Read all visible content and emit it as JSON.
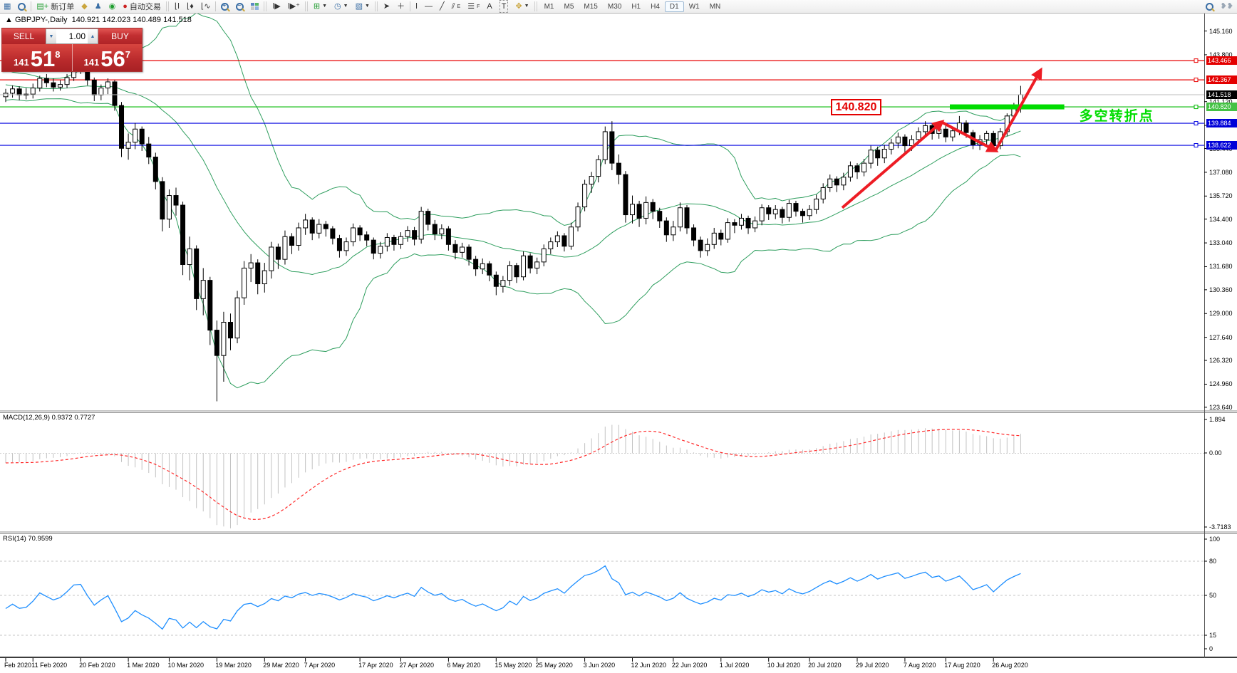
{
  "toolbar": {
    "new_order_label": "新订单",
    "autotrading_label": "自动交易",
    "timeframes": [
      "M1",
      "M5",
      "M15",
      "M30",
      "H1",
      "H4",
      "D1",
      "W1",
      "MN"
    ],
    "active_timeframe": "D1",
    "fibo_letter": "F",
    "channel_letter": "E",
    "text_letter": "A",
    "label_letter": "T"
  },
  "chart": {
    "collapse_arrow": "▲",
    "symbol_header": "GBPJPY-,Daily",
    "ohlc_text": "140.921 142.023 140.489 141.518",
    "trade_panel": {
      "sell_label": "SELL",
      "buy_label": "BUY",
      "volume": "1.00",
      "sell_price_prefix": "141",
      "sell_price_big": "51",
      "sell_price_sup": "8",
      "buy_price_prefix": "141",
      "buy_price_big": "56",
      "buy_price_sup": "7"
    },
    "price_axis_ticks": [
      145.16,
      143.8,
      141.12,
      139.76,
      138.44,
      137.08,
      135.72,
      134.4,
      133.04,
      131.68,
      130.36,
      129.0,
      127.64,
      126.32,
      124.96,
      123.64
    ],
    "hlines": [
      {
        "price": 143.466,
        "label": "143.466",
        "color": "#e80000",
        "badge": "#e40000"
      },
      {
        "price": 142.367,
        "label": "142.367",
        "color": "#e80000",
        "badge": "#e40000"
      },
      {
        "price": 141.518,
        "label": "141.518",
        "color": "#bcbcbc",
        "badge": "#000000",
        "current": true
      },
      {
        "price": 140.82,
        "label": "140.820",
        "color": "#00b800",
        "badge": "#44c244"
      },
      {
        "price": 139.884,
        "label": "139.884",
        "color": "#0000e0",
        "badge": "#0000d8"
      },
      {
        "price": 138.622,
        "label": "138.622",
        "color": "#0000e0",
        "badge": "#0000d8"
      }
    ],
    "annotations": {
      "price_label": {
        "text": "140.820",
        "bar": 121.5,
        "price": 140.82
      },
      "zone": {
        "bar_start": 138.6,
        "bar_end": 155.4,
        "price": 140.82,
        "color": "#00dc00"
      },
      "zone_text": {
        "text": "多空转折点",
        "color": "#00dd00",
        "bar": 157.6,
        "price": 140.45
      },
      "trend_arrow": {
        "color": "#ed1c24",
        "points": [
          [
            122.8,
            135.05
          ],
          [
            137.4,
            139.95
          ],
          [
            145.3,
            138.32
          ],
          [
            151.9,
            142.9
          ]
        ]
      }
    }
  },
  "indicators": {
    "macd": {
      "label": "MACD(12,26,9) 0.9372 0.7727",
      "axis": [
        "1.894",
        "0.00",
        "-3.7183"
      ],
      "fast": 12,
      "slow": 26,
      "signal_period": 9
    },
    "rsi": {
      "label": "RSI(14) 70.9599",
      "axis": [
        "100",
        "80",
        "50",
        "15",
        "0"
      ],
      "period": 14,
      "levels": [
        80,
        50,
        15
      ]
    }
  },
  "x_axis": {
    "labels": [
      {
        "text": "Feb 2020",
        "bar": 0
      },
      {
        "text": "11 Feb 2020",
        "bar": 4
      },
      {
        "text": "20 Feb 2020",
        "bar": 11
      },
      {
        "text": "1 Mar 2020",
        "bar": 18
      },
      {
        "text": "10 Mar 2020",
        "bar": 24
      },
      {
        "text": "19 Mar 2020",
        "bar": 31
      },
      {
        "text": "29 Mar 2020",
        "bar": 38
      },
      {
        "text": "7 Apr 2020",
        "bar": 44
      },
      {
        "text": "17 Apr 2020",
        "bar": 52
      },
      {
        "text": "27 Apr 2020",
        "bar": 58
      },
      {
        "text": "6 May 2020",
        "bar": 65
      },
      {
        "text": "15 May 2020",
        "bar": 72
      },
      {
        "text": "25 May 2020",
        "bar": 78
      },
      {
        "text": "3 Jun 2020",
        "bar": 85
      },
      {
        "text": "12 Jun 2020",
        "bar": 92
      },
      {
        "text": "22 Jun 2020",
        "bar": 98
      },
      {
        "text": "1 Jul 2020",
        "bar": 105
      },
      {
        "text": "10 Jul 2020",
        "bar": 112
      },
      {
        "text": "20 Jul 2020",
        "bar": 118
      },
      {
        "text": "29 Jul 2020",
        "bar": 125
      },
      {
        "text": "7 Aug 2020",
        "bar": 132
      },
      {
        "text": "17 Aug 2020",
        "bar": 138
      },
      {
        "text": "26 Aug 2020",
        "bar": 145
      }
    ]
  },
  "chart_data": {
    "type": "candlestick",
    "symbol": "GBPJPY",
    "timeframe": "Daily",
    "ylim": [
      123.64,
      146.2
    ],
    "bollinger": {
      "period": 20,
      "deviation": 2
    },
    "warmup_closes": [
      143.95,
      143.6,
      143.9,
      144.2,
      143.75,
      143.4,
      143.6,
      143.1,
      142.75,
      142.95,
      143.3,
      143.0,
      142.6,
      142.3,
      142.55,
      142.85,
      142.5,
      142.1,
      141.85,
      142.05,
      142.35,
      142.0,
      141.7,
      141.9,
      142.2,
      141.95,
      141.65,
      141.45,
      141.7,
      141.4
    ],
    "bars": [
      [
        141.4,
        141.85,
        141.1,
        141.6
      ],
      [
        141.6,
        142.05,
        141.35,
        141.85
      ],
      [
        141.85,
        142.0,
        141.2,
        141.5
      ],
      [
        141.5,
        141.9,
        141.25,
        141.55
      ],
      [
        141.55,
        142.15,
        141.3,
        141.9
      ],
      [
        141.9,
        142.6,
        141.7,
        142.45
      ],
      [
        142.45,
        142.7,
        141.95,
        142.2
      ],
      [
        142.2,
        142.45,
        141.7,
        141.95
      ],
      [
        141.95,
        142.35,
        141.75,
        142.1
      ],
      [
        142.1,
        142.7,
        141.9,
        142.5
      ],
      [
        142.5,
        143.25,
        142.3,
        143.05
      ],
      [
        143.05,
        143.45,
        142.7,
        143.1
      ],
      [
        143.1,
        143.2,
        142.05,
        142.35
      ],
      [
        142.35,
        142.5,
        141.15,
        141.5
      ],
      [
        141.5,
        142.1,
        141.2,
        141.9
      ],
      [
        141.9,
        142.45,
        141.55,
        142.25
      ],
      [
        142.25,
        142.35,
        140.6,
        140.9
      ],
      [
        140.9,
        141.1,
        137.95,
        138.45
      ],
      [
        138.45,
        139.3,
        137.8,
        138.8
      ],
      [
        138.8,
        139.9,
        138.4,
        139.55
      ],
      [
        139.55,
        139.7,
        138.3,
        138.7
      ],
      [
        138.7,
        139.1,
        137.55,
        137.95
      ],
      [
        137.95,
        138.2,
        136.1,
        136.55
      ],
      [
        136.55,
        136.8,
        133.7,
        134.4
      ],
      [
        134.4,
        136.1,
        133.9,
        135.75
      ],
      [
        135.75,
        136.2,
        134.6,
        135.2
      ],
      [
        135.2,
        135.4,
        131.2,
        131.8
      ],
      [
        131.8,
        133.4,
        130.9,
        132.7
      ],
      [
        132.7,
        132.9,
        129.2,
        129.85
      ],
      [
        129.85,
        131.6,
        128.9,
        130.9
      ],
      [
        130.9,
        131.1,
        127.2,
        128.05
      ],
      [
        128.05,
        128.6,
        123.98,
        126.6
      ],
      [
        126.6,
        129.1,
        125.1,
        128.5
      ],
      [
        128.5,
        129.0,
        126.9,
        127.6
      ],
      [
        127.6,
        130.3,
        127.3,
        129.9
      ],
      [
        129.9,
        132.0,
        129.5,
        131.6
      ],
      [
        131.6,
        132.4,
        130.8,
        131.9
      ],
      [
        131.9,
        132.1,
        130.1,
        130.7
      ],
      [
        130.7,
        131.9,
        130.2,
        131.45
      ],
      [
        131.45,
        133.1,
        131.0,
        132.8
      ],
      [
        132.8,
        133.0,
        131.55,
        132.1
      ],
      [
        132.1,
        133.75,
        131.8,
        133.4
      ],
      [
        133.4,
        133.6,
        132.4,
        132.9
      ],
      [
        132.9,
        134.2,
        132.6,
        133.9
      ],
      [
        133.9,
        134.7,
        133.5,
        134.35
      ],
      [
        134.35,
        134.5,
        133.2,
        133.6
      ],
      [
        133.6,
        134.4,
        133.3,
        134.1
      ],
      [
        134.1,
        134.3,
        133.4,
        133.85
      ],
      [
        133.85,
        134.0,
        132.95,
        133.3
      ],
      [
        133.3,
        133.5,
        132.2,
        132.6
      ],
      [
        132.6,
        133.35,
        132.3,
        133.1
      ],
      [
        133.1,
        134.15,
        132.85,
        133.9
      ],
      [
        133.9,
        134.05,
        133.15,
        133.5
      ],
      [
        133.5,
        133.7,
        132.85,
        133.2
      ],
      [
        133.2,
        133.35,
        132.1,
        132.45
      ],
      [
        132.45,
        133.1,
        132.15,
        132.85
      ],
      [
        132.85,
        133.6,
        132.55,
        133.35
      ],
      [
        133.35,
        133.5,
        132.6,
        132.95
      ],
      [
        132.95,
        133.65,
        132.7,
        133.4
      ],
      [
        133.4,
        134.0,
        133.1,
        133.75
      ],
      [
        133.75,
        133.95,
        132.9,
        133.25
      ],
      [
        133.25,
        135.1,
        133.0,
        134.85
      ],
      [
        134.85,
        135.0,
        133.75,
        134.1
      ],
      [
        134.1,
        134.35,
        133.2,
        133.55
      ],
      [
        133.55,
        134.1,
        133.25,
        133.85
      ],
      [
        133.85,
        134.0,
        132.6,
        132.95
      ],
      [
        132.95,
        133.2,
        132.1,
        132.5
      ],
      [
        132.5,
        133.05,
        132.2,
        132.8
      ],
      [
        132.8,
        132.95,
        131.75,
        132.1
      ],
      [
        132.1,
        132.3,
        131.15,
        131.55
      ],
      [
        131.55,
        132.15,
        131.25,
        131.85
      ],
      [
        131.85,
        132.0,
        130.85,
        131.2
      ],
      [
        131.2,
        131.4,
        130.05,
        130.55
      ],
      [
        130.55,
        131.15,
        130.2,
        130.9
      ],
      [
        130.9,
        132.0,
        130.6,
        131.75
      ],
      [
        131.75,
        131.9,
        130.75,
        131.1
      ],
      [
        131.1,
        132.55,
        130.9,
        132.3
      ],
      [
        132.3,
        132.45,
        131.3,
        131.6
      ],
      [
        131.6,
        132.2,
        131.25,
        131.95
      ],
      [
        131.95,
        132.95,
        131.7,
        132.7
      ],
      [
        132.7,
        133.35,
        132.4,
        133.1
      ],
      [
        133.1,
        133.7,
        132.8,
        133.45
      ],
      [
        133.45,
        133.6,
        132.55,
        132.85
      ],
      [
        132.85,
        134.2,
        132.65,
        133.95
      ],
      [
        133.95,
        135.35,
        133.7,
        135.1
      ],
      [
        135.1,
        136.65,
        134.85,
        136.4
      ],
      [
        136.4,
        137.1,
        135.9,
        136.85
      ],
      [
        136.85,
        138.05,
        136.5,
        137.8
      ],
      [
        137.8,
        139.7,
        137.55,
        139.4
      ],
      [
        139.4,
        140.0,
        137.2,
        137.6
      ],
      [
        137.6,
        138.1,
        136.4,
        136.95
      ],
      [
        136.95,
        137.15,
        134.2,
        134.65
      ],
      [
        134.65,
        135.75,
        134.15,
        135.25
      ],
      [
        135.25,
        135.45,
        133.95,
        134.45
      ],
      [
        134.45,
        135.7,
        134.1,
        135.35
      ],
      [
        135.35,
        135.55,
        134.4,
        134.85
      ],
      [
        134.85,
        135.05,
        133.9,
        134.3
      ],
      [
        134.3,
        134.5,
        133.1,
        133.5
      ],
      [
        133.5,
        134.3,
        133.15,
        133.95
      ],
      [
        133.95,
        135.35,
        133.7,
        135.05
      ],
      [
        135.05,
        135.2,
        133.55,
        133.9
      ],
      [
        133.9,
        134.1,
        132.85,
        133.2
      ],
      [
        133.2,
        133.4,
        132.2,
        132.6
      ],
      [
        132.6,
        133.3,
        132.3,
        132.95
      ],
      [
        132.95,
        133.9,
        132.7,
        133.6
      ],
      [
        133.6,
        133.8,
        132.9,
        133.25
      ],
      [
        133.25,
        134.45,
        133.05,
        134.2
      ],
      [
        134.2,
        134.4,
        133.6,
        134.05
      ],
      [
        134.05,
        134.7,
        133.8,
        134.45
      ],
      [
        134.45,
        134.6,
        133.55,
        133.9
      ],
      [
        133.9,
        134.55,
        133.65,
        134.3
      ],
      [
        134.3,
        135.25,
        134.05,
        135.05
      ],
      [
        135.05,
        135.2,
        134.35,
        134.7
      ],
      [
        134.7,
        135.2,
        134.4,
        134.95
      ],
      [
        134.95,
        135.1,
        134.15,
        134.5
      ],
      [
        134.5,
        135.5,
        134.25,
        135.3
      ],
      [
        135.3,
        135.45,
        134.55,
        134.85
      ],
      [
        134.85,
        135.0,
        134.2,
        134.6
      ],
      [
        134.6,
        135.2,
        134.35,
        134.95
      ],
      [
        134.95,
        135.8,
        134.7,
        135.55
      ],
      [
        135.55,
        136.45,
        135.3,
        136.2
      ],
      [
        136.2,
        136.95,
        135.95,
        136.7
      ],
      [
        136.7,
        136.85,
        135.95,
        136.35
      ],
      [
        136.35,
        137.05,
        136.05,
        136.8
      ],
      [
        136.8,
        137.7,
        136.55,
        137.45
      ],
      [
        137.45,
        137.6,
        136.7,
        137.1
      ],
      [
        137.1,
        137.85,
        136.85,
        137.6
      ],
      [
        137.6,
        138.6,
        137.3,
        138.35
      ],
      [
        138.35,
        138.55,
        137.45,
        137.9
      ],
      [
        137.9,
        138.65,
        137.6,
        138.4
      ],
      [
        138.4,
        139.0,
        138.1,
        138.75
      ],
      [
        138.75,
        139.35,
        138.45,
        139.1
      ],
      [
        139.1,
        139.25,
        138.2,
        138.6
      ],
      [
        138.6,
        139.2,
        138.3,
        138.95
      ],
      [
        138.95,
        139.65,
        138.7,
        139.4
      ],
      [
        139.4,
        140.0,
        139.1,
        139.75
      ],
      [
        139.75,
        139.9,
        138.95,
        139.3
      ],
      [
        139.3,
        139.8,
        139.0,
        139.55
      ],
      [
        139.55,
        139.75,
        138.8,
        139.1
      ],
      [
        139.1,
        139.7,
        138.85,
        139.45
      ],
      [
        139.45,
        140.3,
        139.2,
        139.9
      ],
      [
        139.9,
        140.05,
        139.05,
        139.35
      ],
      [
        139.35,
        139.5,
        138.4,
        138.65
      ],
      [
        138.65,
        139.2,
        138.35,
        138.95
      ],
      [
        138.95,
        139.45,
        138.6,
        139.3
      ],
      [
        139.3,
        139.45,
        138.35,
        138.6
      ],
      [
        138.6,
        139.6,
        138.4,
        139.4
      ],
      [
        139.4,
        140.45,
        139.15,
        140.3
      ],
      [
        140.3,
        141.05,
        140.05,
        140.92
      ],
      [
        140.921,
        142.023,
        140.489,
        141.518
      ]
    ]
  }
}
